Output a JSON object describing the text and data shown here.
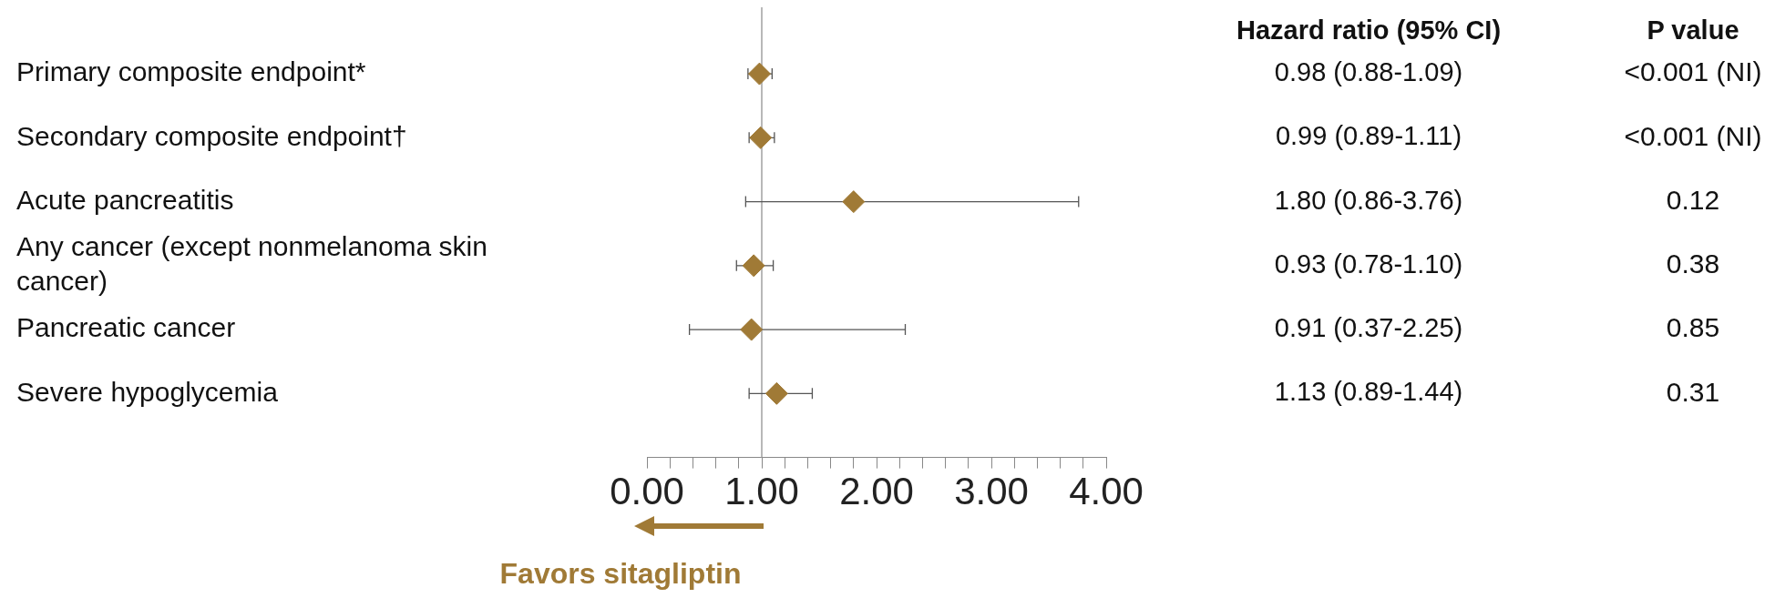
{
  "chart_data": {
    "type": "scatter",
    "orientation": "horizontal",
    "marker": "diamond",
    "categories": [
      "Primary composite endpoint*",
      "Secondary composite endpoint†",
      "Acute pancreatitis",
      "Any cancer (except nonmelanoma skin cancer)",
      "Pancreatic cancer",
      "Severe hypoglycemia"
    ],
    "series": [
      {
        "color": "#a07a36",
        "values": [
          0.98,
          0.99,
          1.8,
          0.93,
          0.91,
          1.13
        ],
        "errors": [
          [
            0.88,
            1.09
          ],
          [
            0.89,
            1.11
          ],
          [
            0.86,
            3.76
          ],
          [
            0.78,
            1.1
          ],
          [
            0.37,
            2.25
          ],
          [
            0.89,
            1.44
          ]
        ],
        "value_labels": [
          "0.98 (0.88-1.09)",
          "0.99 (0.89-1.11)",
          "1.80 (0.86-3.76)",
          "0.93 (0.78-1.10)",
          "0.91 (0.37-2.25)",
          "1.13 (0.89-1.44)"
        ]
      }
    ],
    "xlim": [
      0,
      4
    ],
    "xticks": [
      {
        "value": 0,
        "label": "0.00"
      },
      {
        "value": 0.2,
        "label": null
      },
      {
        "value": 0.4,
        "label": null
      },
      {
        "value": 0.6,
        "label": null
      },
      {
        "value": 0.8,
        "label": null
      },
      {
        "value": 1,
        "label": "1.00"
      },
      {
        "value": 1.2,
        "label": null
      },
      {
        "value": 1.4,
        "label": null
      },
      {
        "value": 1.6,
        "label": null
      },
      {
        "value": 1.8,
        "label": null
      },
      {
        "value": 2,
        "label": "2.00"
      },
      {
        "value": 2.2,
        "label": null
      },
      {
        "value": 2.4,
        "label": null
      },
      {
        "value": 2.6,
        "label": null
      },
      {
        "value": 2.8,
        "label": null
      },
      {
        "value": 3,
        "label": "3.00"
      },
      {
        "value": 3.2,
        "label": null
      },
      {
        "value": 3.4,
        "label": null
      },
      {
        "value": 3.6,
        "label": null
      },
      {
        "value": 3.8,
        "label": null
      },
      {
        "value": 4,
        "label": "4.00"
      }
    ],
    "ref_lines": [
      {
        "axis": "x",
        "value": 1
      }
    ],
    "annotations": [
      "Hazard ratio (95% CI)",
      "P value",
      "<0.001 (NI)",
      "<0.001 (NI)",
      "0.12",
      "0.38",
      "0.85",
      "0.31",
      "Favors sitagliptin"
    ]
  }
}
